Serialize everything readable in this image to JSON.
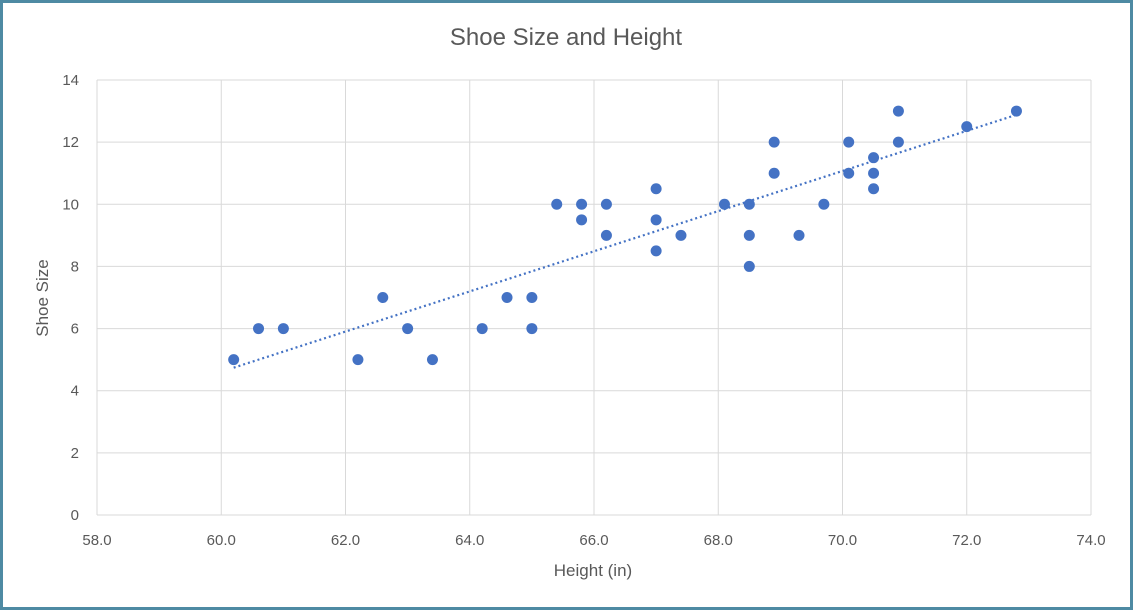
{
  "chart_data": {
    "type": "scatter",
    "title": "Shoe Size and Height",
    "xlabel": "Height (in)",
    "ylabel": "Shoe Size",
    "xlim": [
      58,
      74
    ],
    "ylim": [
      0,
      14
    ],
    "x_ticks": [
      "58.0",
      "60.0",
      "62.0",
      "64.0",
      "66.0",
      "68.0",
      "70.0",
      "72.0",
      "74.0"
    ],
    "y_ticks": [
      "0",
      "2",
      "4",
      "6",
      "8",
      "10",
      "12",
      "14"
    ],
    "grid": true,
    "marker_color": "#4472c4",
    "trendline": {
      "type": "linear",
      "style": "dotted",
      "color": "#4472c4"
    },
    "points": [
      {
        "x": 60.2,
        "y": 5
      },
      {
        "x": 60.6,
        "y": 6
      },
      {
        "x": 61.0,
        "y": 6
      },
      {
        "x": 62.2,
        "y": 5
      },
      {
        "x": 62.6,
        "y": 7
      },
      {
        "x": 63.0,
        "y": 6
      },
      {
        "x": 63.4,
        "y": 5
      },
      {
        "x": 64.2,
        "y": 6
      },
      {
        "x": 64.6,
        "y": 7
      },
      {
        "x": 65.0,
        "y": 7
      },
      {
        "x": 65.0,
        "y": 6
      },
      {
        "x": 65.4,
        "y": 10
      },
      {
        "x": 65.8,
        "y": 10
      },
      {
        "x": 65.8,
        "y": 9.5
      },
      {
        "x": 66.2,
        "y": 10
      },
      {
        "x": 66.2,
        "y": 9
      },
      {
        "x": 67.0,
        "y": 10.5
      },
      {
        "x": 67.0,
        "y": 9.5
      },
      {
        "x": 67.0,
        "y": 8.5
      },
      {
        "x": 67.4,
        "y": 9
      },
      {
        "x": 68.1,
        "y": 10
      },
      {
        "x": 68.5,
        "y": 10
      },
      {
        "x": 68.5,
        "y": 9
      },
      {
        "x": 68.5,
        "y": 8
      },
      {
        "x": 68.9,
        "y": 12
      },
      {
        "x": 68.9,
        "y": 11
      },
      {
        "x": 69.3,
        "y": 9
      },
      {
        "x": 69.7,
        "y": 10
      },
      {
        "x": 70.1,
        "y": 12
      },
      {
        "x": 70.1,
        "y": 11
      },
      {
        "x": 70.5,
        "y": 11.5
      },
      {
        "x": 70.5,
        "y": 11
      },
      {
        "x": 70.5,
        "y": 10.5
      },
      {
        "x": 70.9,
        "y": 13
      },
      {
        "x": 70.9,
        "y": 12
      },
      {
        "x": 72.0,
        "y": 12.5
      },
      {
        "x": 72.8,
        "y": 13
      }
    ]
  }
}
